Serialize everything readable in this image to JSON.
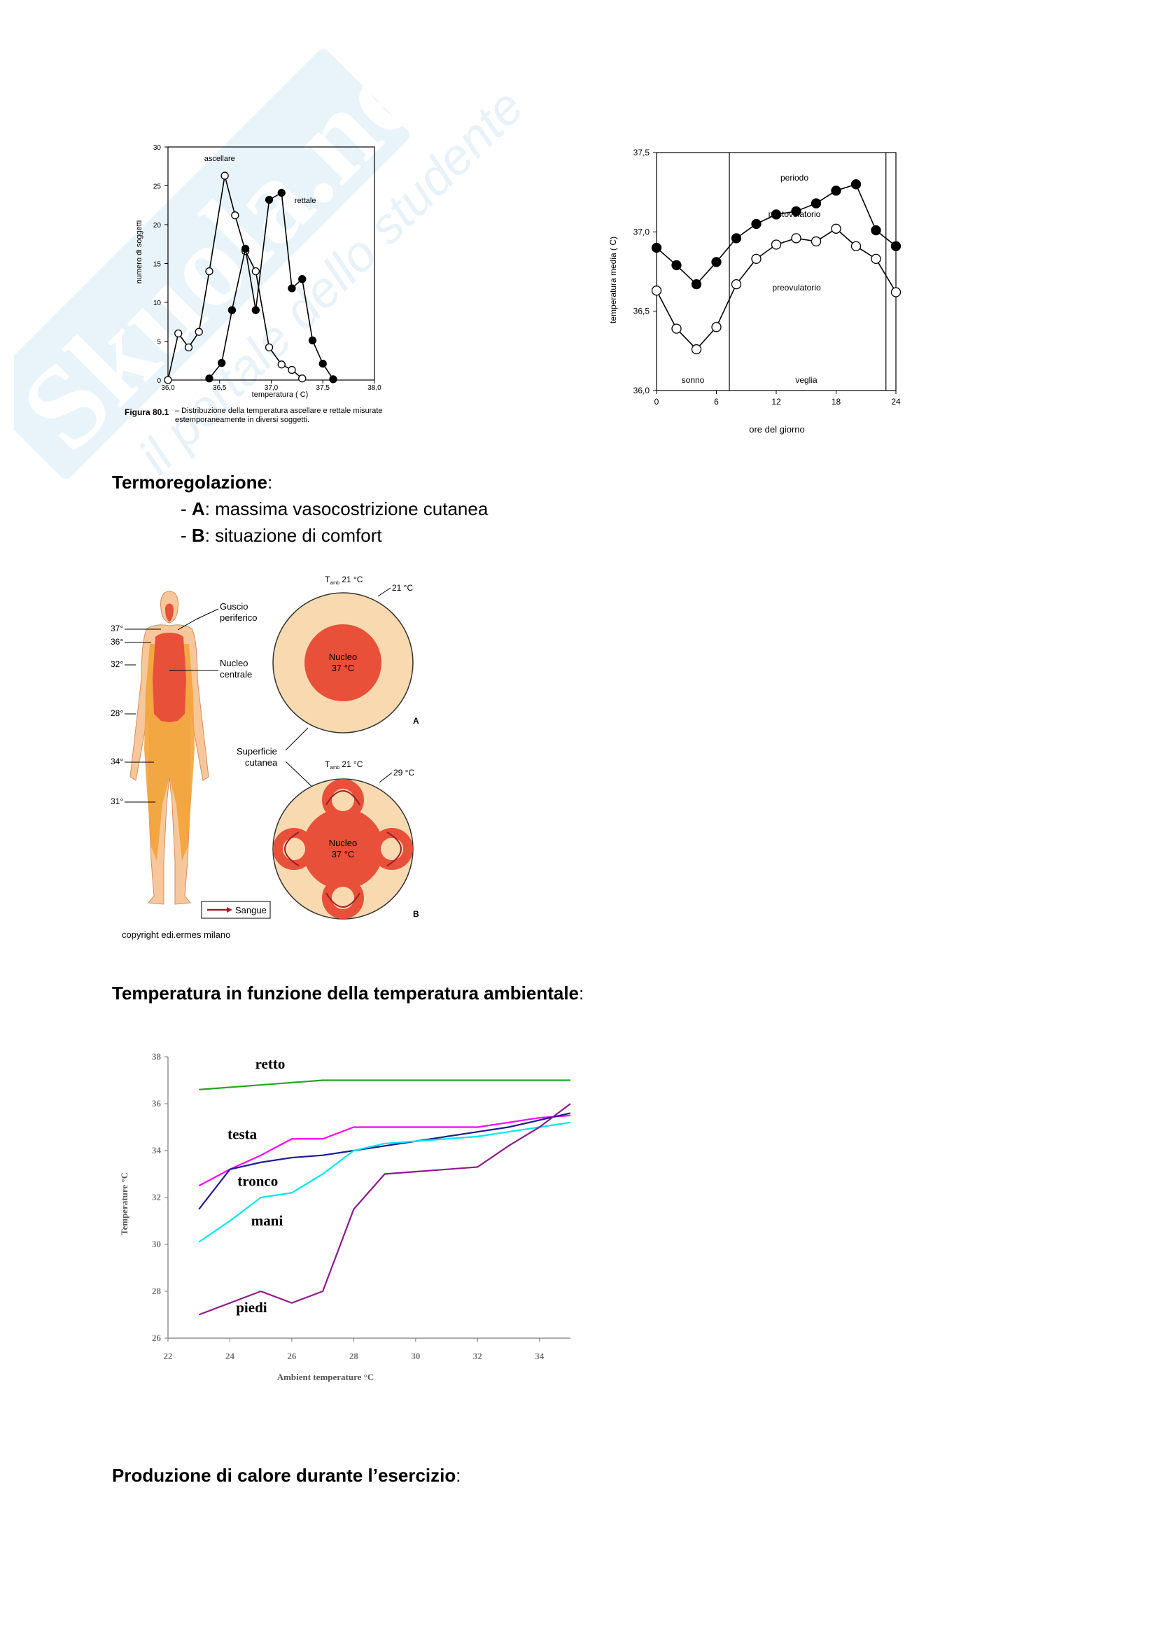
{
  "watermark": {
    "brand": "Skuola.net",
    "tagline": "il portale dello studente"
  },
  "sections": {
    "termo": {
      "heading": "Termoregolazione",
      "colon": ":",
      "items": [
        {
          "key": "A",
          "text": ": massima vasocostrizione cutanea"
        },
        {
          "key": "B",
          "text": ": situazione di comfort"
        }
      ]
    },
    "ambient": {
      "heading": "Temperatura in funzione della temperatura ambientale",
      "colon": ":"
    },
    "exercise": {
      "heading": "Produzione di calore durante l’esercizio",
      "colon": ":"
    },
    "dash": "-"
  },
  "body_diagram": {
    "t_ambient_A": "T",
    "t_ambient_sub": "amb",
    "t_ambient_value": "21 °C",
    "surface_A": "21 °C",
    "surface_B": "29 °C",
    "nucleus_label": "Nucleo",
    "nucleus_temp": "37 °C",
    "label_A": "A",
    "label_B": "B",
    "guscio": [
      "Guscio",
      "periferico"
    ],
    "nucleo_centrale": [
      "Nucleo",
      "centrale"
    ],
    "superficie": [
      "Superficie",
      "cutanea"
    ],
    "temps": [
      "37°",
      "36°",
      "32°",
      "28°",
      "34°",
      "31°"
    ],
    "legend": "Sangue",
    "copyright": "copyright edi.ermes milano",
    "colors": {
      "core": "#e8503a",
      "shell": "#f8d9b0",
      "skin": "#f6c79a",
      "warm": "#f3a33a",
      "blood": "#9c1e2a"
    }
  },
  "chart_data": [
    {
      "type": "line",
      "xlabel": "temperatura ( C)",
      "ylabel": "numero di soggetti",
      "xlim": [
        36.0,
        38.0
      ],
      "ylim": [
        0,
        30
      ],
      "xticks": [
        "36,0",
        "36,5",
        "37,0",
        "37,5",
        "38,0"
      ],
      "yticks": [
        "0",
        "5",
        "10",
        "15",
        "20",
        "25",
        "30"
      ],
      "caption_bold": "Figura 80.1",
      "caption": " – Distribuzione della temperatura ascellare e rettale misurate estemporaneamente in diversi soggetti.",
      "series": [
        {
          "name": "ascellare",
          "marker": "open",
          "x": [
            36.0,
            36.1,
            36.2,
            36.3,
            36.4,
            36.55,
            36.65,
            36.75,
            36.85,
            36.98,
            37.1,
            37.2,
            37.3
          ],
          "y": [
            0,
            6,
            4.2,
            6.2,
            14,
            26.3,
            21.2,
            16.6,
            14,
            4.2,
            2.0,
            1.3,
            0.2
          ]
        },
        {
          "name": "rettale",
          "marker": "filled",
          "x": [
            36.4,
            36.52,
            36.62,
            36.75,
            36.85,
            36.98,
            37.1,
            37.2,
            37.3,
            37.4,
            37.5,
            37.6
          ],
          "y": [
            0.2,
            2.2,
            9.0,
            16.9,
            9.0,
            23.2,
            24.1,
            11.8,
            13.0,
            5.1,
            2.1,
            0.1
          ]
        }
      ]
    },
    {
      "type": "line",
      "xlabel": "ore del giorno",
      "ylabel": "temperatura media ( C)",
      "xlim": [
        0,
        24
      ],
      "ylim": [
        36.0,
        37.5
      ],
      "xticks": [
        "0",
        "6",
        "12",
        "18",
        "24"
      ],
      "yticks": [
        "36,0",
        "36,5",
        "37,0",
        "37,5"
      ],
      "annotations": {
        "periodo": "periodo",
        "sonno": "sonno",
        "veglia": "veglia"
      },
      "series": [
        {
          "name": "postovulatorio",
          "marker": "filled",
          "x": [
            0,
            2,
            4,
            6,
            8,
            10,
            12,
            14,
            16,
            18,
            20,
            22,
            24
          ],
          "y": [
            36.9,
            36.79,
            36.67,
            36.81,
            36.96,
            37.05,
            37.11,
            37.13,
            37.18,
            37.26,
            37.3,
            37.01,
            36.91
          ]
        },
        {
          "name": "preovulatorio",
          "marker": "open",
          "x": [
            0,
            2,
            4,
            6,
            8,
            10,
            12,
            14,
            16,
            18,
            20,
            22,
            24
          ],
          "y": [
            36.63,
            36.39,
            36.26,
            36.4,
            36.67,
            36.83,
            36.92,
            36.96,
            36.94,
            37.02,
            36.91,
            36.83,
            36.62
          ]
        }
      ]
    },
    {
      "type": "line",
      "xlabel": "Ambient temperature °C",
      "ylabel": "Temperature °C",
      "xlim": [
        22,
        35
      ],
      "ylim": [
        26,
        38
      ],
      "xticks": [
        "22",
        "24",
        "26",
        "28",
        "30",
        "32",
        "34"
      ],
      "yticks": [
        "26",
        "28",
        "30",
        "32",
        "34",
        "36",
        "38"
      ],
      "series": [
        {
          "name": "retto",
          "color": "#22a522",
          "x": [
            23,
            25,
            27,
            29,
            31,
            33,
            35
          ],
          "y": [
            36.6,
            36.8,
            37.0,
            37.0,
            37.0,
            37.0,
            37.0
          ]
        },
        {
          "name": "testa",
          "color": "#ff00ff",
          "x": [
            23,
            24,
            25,
            26,
            27,
            28,
            29,
            30,
            31,
            32,
            33,
            34,
            35
          ],
          "y": [
            32.5,
            33.2,
            33.8,
            34.5,
            34.5,
            35.0,
            35.0,
            35.0,
            35.0,
            35.0,
            35.2,
            35.4,
            35.5
          ]
        },
        {
          "name": "tronco",
          "color": "#1c1c8c",
          "x": [
            23,
            24,
            25,
            26,
            27,
            28,
            29,
            30,
            31,
            32,
            33,
            34,
            35
          ],
          "y": [
            31.5,
            33.2,
            33.5,
            33.7,
            33.8,
            34.0,
            34.2,
            34.4,
            34.6,
            34.8,
            35.0,
            35.3,
            35.6
          ]
        },
        {
          "name": "mani",
          "color": "#00e5ee",
          "x": [
            23,
            24,
            25,
            26,
            27,
            28,
            29,
            30,
            31,
            32,
            33,
            34,
            35
          ],
          "y": [
            30.1,
            31.0,
            32.0,
            32.2,
            33.0,
            34.0,
            34.3,
            34.4,
            34.5,
            34.6,
            34.8,
            35.0,
            35.2
          ]
        },
        {
          "name": "piedi",
          "color": "#8a1c8a",
          "x": [
            23,
            24,
            25,
            26,
            27,
            28,
            29,
            30,
            31,
            32,
            33,
            34,
            35
          ],
          "y": [
            27.0,
            27.5,
            28.0,
            27.5,
            28.0,
            31.5,
            33.0,
            33.1,
            33.2,
            33.3,
            34.2,
            35.0,
            36.0
          ]
        }
      ]
    }
  ]
}
